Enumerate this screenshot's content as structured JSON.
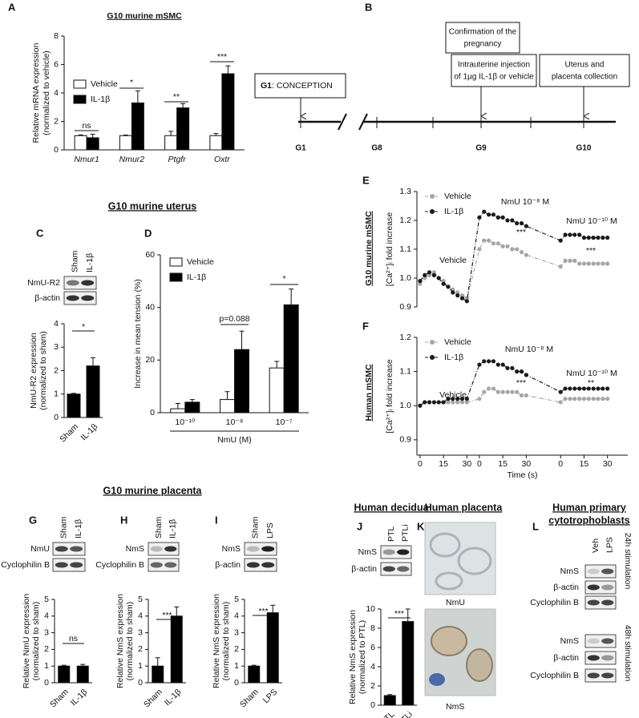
{
  "panel_labels": [
    "A",
    "B",
    "C",
    "D",
    "E",
    "F",
    "G",
    "H",
    "I",
    "J",
    "K",
    "L"
  ],
  "section_titles": [
    "G10 murine uterus",
    "G10 murine placenta",
    "Human decidua",
    "Human placenta",
    "Human primary",
    "cytotrophoblasts"
  ],
  "timeline": {
    "conception": {
      "bold": "G1",
      "text": ": CONCEPTION"
    },
    "boxes": [
      [
        "Confirmation of the",
        "pregnancy"
      ],
      [
        "Intrauterine injection",
        "of 1µg IL-1β or vehicle"
      ],
      [
        "Uterus and",
        "placenta collection"
      ]
    ],
    "days": [
      "G1",
      "G8",
      "G9",
      "G10"
    ]
  },
  "blots": [
    {
      "columns": [
        "Sham",
        "IL-1β"
      ],
      "rows": [
        "NmU-R2",
        "β-actin"
      ]
    },
    {
      "columns": [
        "Sham",
        "IL-1β"
      ],
      "rows": [
        "NmU",
        "Cyclophilin B"
      ]
    },
    {
      "columns": [
        "Sham",
        "IL-1β"
      ],
      "rows": [
        "NmS",
        "Cyclophilin B"
      ]
    },
    {
      "columns": [
        "Sham",
        "LPS"
      ],
      "rows": [
        "NmS",
        "β-actin"
      ]
    },
    {
      "columns": [
        "PTL",
        "PTLi"
      ],
      "rows": [
        "NmS",
        "β-actin"
      ]
    },
    {
      "columns": [
        "Veh",
        "LPS"
      ],
      "groups": [
        {
          "rows": [
            "NmS",
            "β-actin",
            "Cyclophilin B"
          ],
          "note": "24h stimulation"
        },
        {
          "rows": [
            "NmS",
            "β-actin",
            "Cyclophilin B"
          ],
          "note": "48h stimulation"
        }
      ]
    }
  ],
  "images": [
    "NmU",
    "NmS"
  ],
  "chart_data": [
    {
      "type": "bar",
      "title": "G10 murine mSMC",
      "ylabel": [
        "Relative mRNA expression",
        "(normalized to vehicle)"
      ],
      "categories": [
        "Nmur1",
        "Nmur2",
        "Ptgfr",
        "Oxtr"
      ],
      "series": [
        {
          "name": "Vehicle",
          "color": "#ffffff",
          "values": [
            1,
            1,
            1,
            1
          ],
          "errors": [
            0.05,
            0.04,
            0.3,
            0.15
          ]
        },
        {
          "name": "IL-1β",
          "color": "#000000",
          "values": [
            0.85,
            3.3,
            2.95,
            5.35
          ],
          "errors": [
            0.25,
            0.85,
            0.3,
            0.55
          ]
        }
      ],
      "ylim": [
        0,
        8
      ],
      "yticks": [
        0,
        2,
        4,
        6,
        8
      ],
      "annotations": [
        "ns",
        "*",
        "**",
        "***"
      ]
    },
    {
      "type": "bar",
      "ylabel": [
        "NmU-R2 expression",
        "(normalized to sham)"
      ],
      "categories": [
        "Sham",
        "IL-1β"
      ],
      "series": [
        {
          "color": "#000000",
          "values": [
            1,
            2.2
          ],
          "errors": [
            0.03,
            0.35
          ]
        }
      ],
      "ylim": [
        0,
        4
      ],
      "yticks": [
        0,
        1,
        2,
        3,
        4
      ],
      "annotations": [
        "*"
      ]
    },
    {
      "type": "bar",
      "ylabel": [
        "Increase in mean tension (%)"
      ],
      "xlabel": "NmU (M)",
      "categories": [
        "10⁻¹⁰",
        "10⁻⁸",
        "10⁻⁷"
      ],
      "series": [
        {
          "name": "Vehicle",
          "color": "#ffffff",
          "values": [
            1.5,
            5,
            17
          ],
          "errors": [
            2,
            3,
            2.5
          ]
        },
        {
          "name": "IL-1β",
          "color": "#000000",
          "values": [
            4,
            24,
            41
          ],
          "errors": [
            1,
            7,
            6
          ]
        }
      ],
      "ylim": [
        0,
        60
      ],
      "yticks": [
        0,
        20,
        40,
        60
      ],
      "annotations": [
        "p=0.088",
        "*"
      ]
    },
    {
      "type": "line",
      "side_label": "G10 murine mSMC",
      "ylabel": "[Ca²⁺]ᵢ fold increase",
      "x": [
        0,
        3,
        6,
        9,
        12,
        15,
        18,
        21,
        24,
        27,
        30,
        38,
        41,
        44,
        47,
        50,
        53,
        56,
        59,
        62,
        65,
        68,
        90,
        93,
        96,
        99,
        102,
        105,
        108,
        111,
        114,
        117,
        120
      ],
      "xlim": [
        -2,
        133
      ],
      "ylim": [
        0.9,
        1.3
      ],
      "yticks": [
        0.9,
        {
          "value": 1,
          "label": "1.0"
        },
        1.1,
        1.2,
        1.3
      ],
      "series": [
        {
          "name": "Vehicle",
          "color": "#a6a6a6",
          "values": [
            0.98,
            1.0,
            1.01,
            1.02,
            1.0,
            0.99,
            0.97,
            0.96,
            0.95,
            0.94,
            0.93,
            1.1,
            1.13,
            1.13,
            1.12,
            1.12,
            1.11,
            1.11,
            1.1,
            1.1,
            1.09,
            1.08,
            1.04,
            1.06,
            1.06,
            1.06,
            1.05,
            1.05,
            1.05,
            1.05,
            1.05,
            1.05,
            1.05
          ]
        },
        {
          "name": "IL-1β",
          "color": "#1a1a1a",
          "values": [
            0.99,
            1.01,
            1.02,
            1.01,
            1.0,
            0.98,
            0.97,
            0.95,
            0.94,
            0.93,
            0.92,
            1.21,
            1.23,
            1.22,
            1.22,
            1.21,
            1.21,
            1.2,
            1.2,
            1.19,
            1.19,
            1.18,
            1.13,
            1.15,
            1.15,
            1.15,
            1.15,
            1.14,
            1.14,
            1.14,
            1.14,
            1.14,
            1.14
          ]
        }
      ],
      "annotations": [
        "Vehicle",
        "NmU 10⁻⁸ M",
        "NmU 10⁻¹⁰ M",
        "***",
        "***"
      ]
    },
    {
      "type": "line",
      "side_label": "Human mSMC",
      "ylabel": "[Ca²⁺]ᵢ fold increase",
      "xlabel": "Time (s)",
      "x": [
        0,
        3,
        6,
        9,
        12,
        15,
        18,
        21,
        24,
        27,
        30,
        38,
        41,
        44,
        47,
        50,
        53,
        56,
        59,
        62,
        65,
        68,
        90,
        93,
        96,
        99,
        102,
        105,
        108,
        111,
        114,
        117,
        120
      ],
      "xlim": [
        -2,
        133
      ],
      "xticks": [
        0,
        15,
        30,
        {
          "value": 38,
          "label": "0"
        },
        {
          "value": 53,
          "label": "15"
        },
        {
          "value": 68,
          "label": "30"
        },
        {
          "value": 90,
          "label": "0"
        },
        {
          "value": 105,
          "label": "15"
        },
        {
          "value": 120,
          "label": "30"
        }
      ],
      "ylim": [
        0.855,
        1.2
      ],
      "yticks": [
        0.9,
        {
          "value": 1,
          "label": "1.0"
        },
        1.1,
        1.2
      ],
      "series": [
        {
          "name": "Vehicle",
          "color": "#a6a6a6",
          "values": [
            1.0,
            1.01,
            1.01,
            1.01,
            1.01,
            1.01,
            1.01,
            1.01,
            1.01,
            1.01,
            1.01,
            1.02,
            1.04,
            1.05,
            1.05,
            1.04,
            1.04,
            1.04,
            1.04,
            1.04,
            1.03,
            1.03,
            1.01,
            1.02,
            1.02,
            1.02,
            1.02,
            1.02,
            1.02,
            1.02,
            1.02,
            1.02,
            1.02
          ]
        },
        {
          "name": "IL-1β",
          "color": "#1a1a1a",
          "values": [
            1.0,
            1.01,
            1.01,
            1.01,
            1.01,
            1.01,
            1.02,
            1.02,
            1.02,
            1.02,
            1.02,
            1.12,
            1.13,
            1.13,
            1.13,
            1.12,
            1.12,
            1.11,
            1.11,
            1.1,
            1.1,
            1.09,
            1.04,
            1.05,
            1.05,
            1.05,
            1.05,
            1.05,
            1.05,
            1.05,
            1.05,
            1.05,
            1.05
          ]
        }
      ],
      "annotations": [
        "Vehicle",
        "NmU 10⁻⁸ M",
        "NmU 10⁻¹⁰ M",
        "***",
        "**"
      ]
    },
    {
      "type": "bar",
      "ylabel": [
        "Relative NmU expression",
        "(normalized to sham)"
      ],
      "categories": [
        "Sham",
        "IL-1β"
      ],
      "series": [
        {
          "color": "#000000",
          "values": [
            1,
            1
          ],
          "errors": [
            0.05,
            0.1
          ]
        }
      ],
      "ylim": [
        0,
        5
      ],
      "yticks": [
        0,
        1,
        2,
        3,
        4,
        5
      ],
      "annotations": [
        "ns"
      ]
    },
    {
      "type": "bar",
      "ylabel": [
        "Relative NmS expression",
        "(normalized to sham)"
      ],
      "categories": [
        "Sham",
        "IL-1β"
      ],
      "series": [
        {
          "color": "#000000",
          "values": [
            1,
            4
          ],
          "errors": [
            0.5,
            0.55
          ]
        }
      ],
      "ylim": [
        0,
        5
      ],
      "yticks": [
        0,
        1,
        2,
        3,
        4,
        5
      ],
      "annotations": [
        "***"
      ]
    },
    {
      "type": "bar",
      "ylabel": [
        "Relative NmS expression",
        "(normalized to sham)"
      ],
      "categories": [
        "Sham",
        "LPS"
      ],
      "series": [
        {
          "color": "#000000",
          "values": [
            1,
            4.2
          ],
          "errors": [
            0.05,
            0.45
          ]
        }
      ],
      "ylim": [
        0,
        5
      ],
      "yticks": [
        0,
        1,
        2,
        3,
        4,
        5
      ],
      "annotations": [
        "***"
      ]
    },
    {
      "type": "bar",
      "ylabel": [
        "Relative NmS expression",
        "(normalized to PTL)"
      ],
      "categories": [
        "PTL",
        "PTLi"
      ],
      "series": [
        {
          "color": "#000000",
          "values": [
            1,
            8.7
          ],
          "errors": [
            0.1,
            1.3
          ]
        }
      ],
      "ylim": [
        0,
        10
      ],
      "yticks": [
        0,
        2,
        4,
        6,
        8,
        10
      ],
      "annotations": [
        "***"
      ]
    }
  ]
}
